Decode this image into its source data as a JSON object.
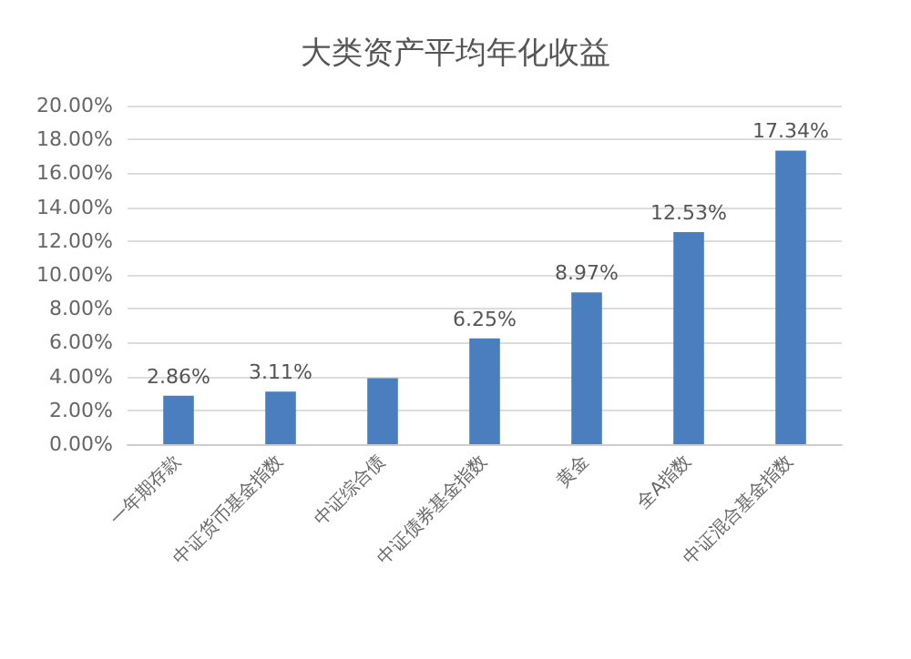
{
  "chart_data": {
    "type": "bar",
    "title": "大类资产平均年化收益",
    "categories": [
      "一年期存款",
      "中证货币基金指数",
      "中证综合债",
      "中证债券基金指数",
      "黄金",
      "全A指数",
      "中证混合基金指数"
    ],
    "values": [
      2.86,
      3.11,
      3.9,
      6.25,
      8.97,
      12.53,
      17.34
    ],
    "value_labels": [
      "2.86%",
      "3.11%",
      null,
      "6.25%",
      "8.97%",
      "12.53%",
      "17.34%"
    ],
    "color": "#4a7ebf",
    "ylim": [
      0,
      20
    ],
    "yticks": [
      {
        "value": 0,
        "label": "0.00%"
      },
      {
        "value": 2,
        "label": "2.00%"
      },
      {
        "value": 4,
        "label": "4.00%"
      },
      {
        "value": 6,
        "label": "6.00%"
      },
      {
        "value": 8,
        "label": "8.00%"
      },
      {
        "value": 10,
        "label": "10.00%"
      },
      {
        "value": 12,
        "label": "12.00%"
      },
      {
        "value": 14,
        "label": "14.00%"
      },
      {
        "value": 16,
        "label": "16.00%"
      },
      {
        "value": 18,
        "label": "18.00%"
      },
      {
        "value": 20,
        "label": "20.00%"
      }
    ],
    "grid": "y"
  }
}
